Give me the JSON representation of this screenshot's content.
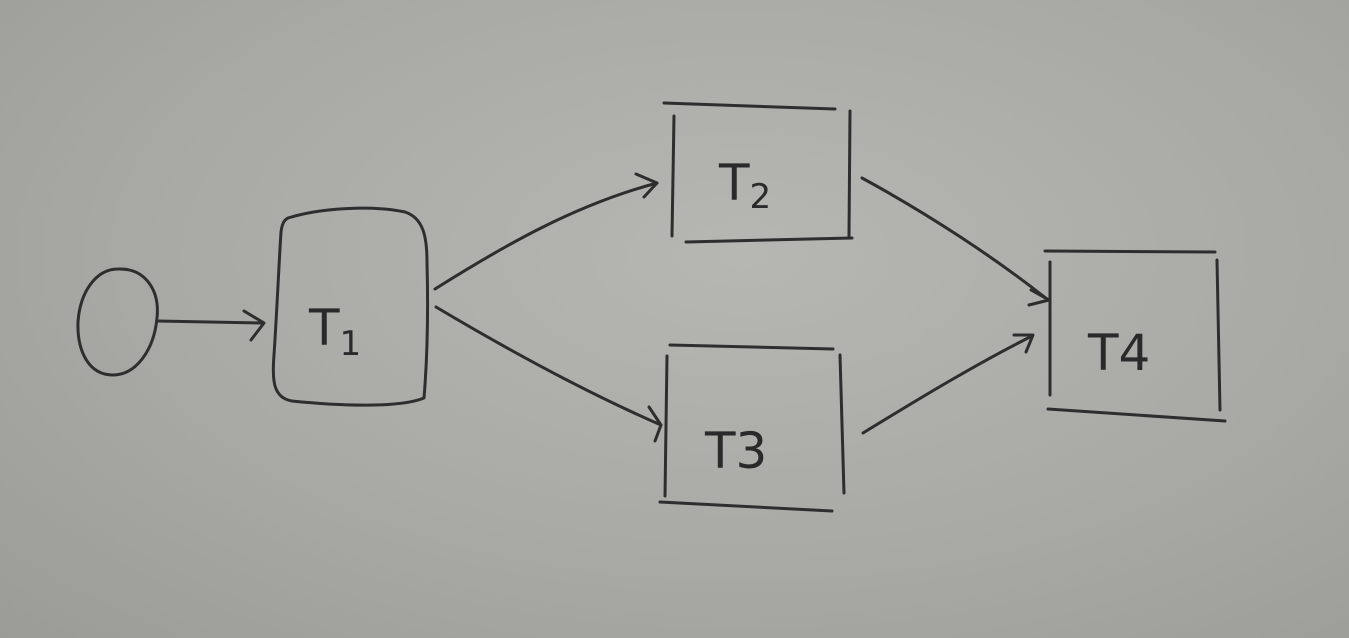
{
  "diagram": {
    "type": "flowchart",
    "nodes": [
      {
        "id": "start",
        "shape": "circle",
        "label": ""
      },
      {
        "id": "t1",
        "shape": "rounded-box",
        "label_main": "T",
        "label_sub": "1"
      },
      {
        "id": "t2",
        "shape": "box",
        "label_main": "T",
        "label_sub": "2"
      },
      {
        "id": "t3",
        "shape": "box",
        "label_main": "T3"
      },
      {
        "id": "t4",
        "shape": "box",
        "label_main": "T4"
      }
    ],
    "edges": [
      {
        "from": "start",
        "to": "t1"
      },
      {
        "from": "t1",
        "to": "t2"
      },
      {
        "from": "t1",
        "to": "t3"
      },
      {
        "from": "t2",
        "to": "t4"
      },
      {
        "from": "t3",
        "to": "t4"
      }
    ],
    "colors": {
      "board": "#aeaeaa",
      "ink": "#2e2e2e"
    }
  }
}
